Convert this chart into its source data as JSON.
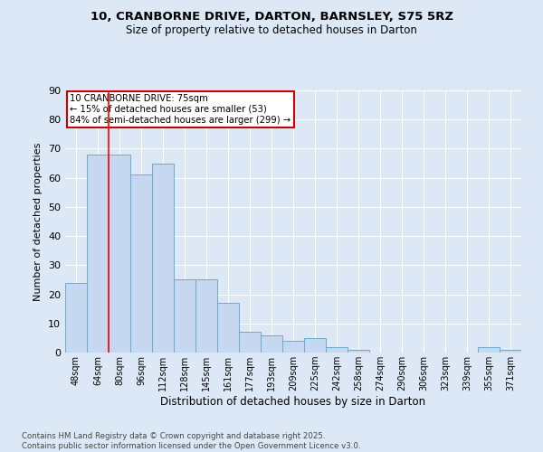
{
  "title1": "10, CRANBORNE DRIVE, DARTON, BARNSLEY, S75 5RZ",
  "title2": "Size of property relative to detached houses in Darton",
  "xlabel": "Distribution of detached houses by size in Darton",
  "ylabel": "Number of detached properties",
  "categories": [
    "48sqm",
    "64sqm",
    "80sqm",
    "96sqm",
    "112sqm",
    "128sqm",
    "145sqm",
    "161sqm",
    "177sqm",
    "193sqm",
    "209sqm",
    "225sqm",
    "242sqm",
    "258sqm",
    "274sqm",
    "290sqm",
    "306sqm",
    "323sqm",
    "339sqm",
    "355sqm",
    "371sqm"
  ],
  "values": [
    24,
    68,
    68,
    61,
    65,
    25,
    25,
    17,
    7,
    6,
    4,
    5,
    2,
    1,
    0,
    0,
    0,
    0,
    0,
    2,
    1
  ],
  "bar_color": "#c5d8f0",
  "bar_edge_color": "#6aaad4",
  "annotation_title": "10 CRANBORNE DRIVE: 75sqm",
  "annotation_line1": "← 15% of detached houses are smaller (53)",
  "annotation_line2": "84% of semi-detached houses are larger (299) →",
  "annotation_box_color": "#ffffff",
  "annotation_box_edge_color": "#cc0000",
  "bg_outer": "#dce8f5",
  "bg_inner": "#dce8f5",
  "grid_color": "#ffffff",
  "footer1": "Contains HM Land Registry data © Crown copyright and database right 2025.",
  "footer2": "Contains public sector information licensed under the Open Government Licence v3.0.",
  "ylim": [
    0,
    90
  ],
  "yticks": [
    0,
    10,
    20,
    30,
    40,
    50,
    60,
    70,
    80,
    90
  ],
  "red_line_x": 1.5,
  "title1_fontsize": 9.5,
  "title2_fontsize": 8.5
}
